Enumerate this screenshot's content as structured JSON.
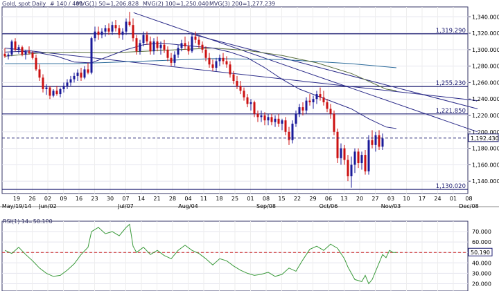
{
  "header": {
    "symbol": "Gold, spot",
    "period": "Daily",
    "bars": "# 140 / 401",
    "ma1": "MVG(1) 50=1,206.828",
    "ma2": "MVG(2) 100=1,250.040",
    "ma3": "MVG(3) 200=1,277.239"
  },
  "colors": {
    "up": "#1a1a99",
    "down": "#cc1111",
    "ma50": "#2a2a88",
    "ma100": "#556b3a",
    "ma200": "#2a6a9a",
    "trend": "#2a2a88",
    "level": "#1c1c70",
    "last": "#1c1c70",
    "rsi": "#3a9a3a",
    "rsi_mid": "#cc2222"
  },
  "chart_data": [
    {
      "type": "candlestick",
      "title": "Gold, spot, Daily",
      "y_ticks": [
        1140,
        1160,
        1180,
        1200,
        1220,
        1240,
        1260,
        1280,
        1300,
        1320,
        1340
      ],
      "y_tick_labels": [
        "1,140.000",
        "1,160.000",
        "1,180.000",
        "1,200.000",
        "1,220.000",
        "1,240.000",
        "1,260.000",
        "1,280.000",
        "1,300.000",
        "1,320.000",
        "1,340.000"
      ],
      "ylim": [
        1125,
        1352
      ],
      "x_day_labels": [
        "19",
        "26",
        "02",
        "09",
        "16",
        "23",
        "30",
        "07",
        "14",
        "21",
        "28",
        "04",
        "11",
        "18",
        "25",
        "01",
        "08",
        "15",
        "22",
        "29",
        "06",
        "13",
        "20",
        "27",
        "03",
        "10",
        "17",
        "24",
        "01",
        "08"
      ],
      "x_month_labels": [
        "May/19/14",
        "Jun/02",
        "Jul/07",
        "Aug/04",
        "Sep/08",
        "Oct/06",
        "Nov/03",
        "Dec/08"
      ],
      "x_month_label_indices": [
        0,
        2,
        7,
        11,
        16,
        20,
        24,
        29
      ],
      "dates_start": "2014-05-19",
      "horizontal_levels": [
        {
          "value": 1319.29,
          "label": "1,319.290"
        },
        {
          "value": 1255.23,
          "label": "1,255.230"
        },
        {
          "value": 1221.85,
          "label": "1,221.850"
        },
        {
          "value": 1130.02,
          "label": "1,130.020"
        }
      ],
      "last_price": {
        "value": 1192.43,
        "label": "1,192.430"
      },
      "trendlines": [
        {
          "start": [
            "2014-07-10",
            1345
          ],
          "end": [
            "2014-11-26",
            1200
          ]
        },
        {
          "start": [
            "2014-08-01",
            1320
          ],
          "end": [
            "2014-11-26",
            1228
          ]
        },
        {
          "start": [
            "2014-05-19",
            1302
          ],
          "end": [
            "2014-11-26",
            1238
          ]
        }
      ],
      "candles": [
        [
          1295,
          1302,
          1290,
          1292
        ],
        [
          1292,
          1296,
          1288,
          1294
        ],
        [
          1294,
          1312,
          1292,
          1310
        ],
        [
          1310,
          1314,
          1298,
          1300
        ],
        [
          1300,
          1306,
          1295,
          1303
        ],
        [
          1303,
          1305,
          1292,
          1294
        ],
        [
          1294,
          1300,
          1288,
          1298
        ],
        [
          1298,
          1304,
          1294,
          1296
        ],
        [
          1296,
          1298,
          1288,
          1290
        ],
        [
          1290,
          1294,
          1274,
          1276
        ],
        [
          1276,
          1282,
          1262,
          1266
        ],
        [
          1266,
          1270,
          1248,
          1252
        ],
        [
          1252,
          1258,
          1245,
          1254
        ],
        [
          1254,
          1256,
          1240,
          1244
        ],
        [
          1244,
          1252,
          1242,
          1250
        ],
        [
          1250,
          1256,
          1244,
          1246
        ],
        [
          1246,
          1254,
          1242,
          1252
        ],
        [
          1252,
          1260,
          1248,
          1256
        ],
        [
          1256,
          1264,
          1252,
          1260
        ],
        [
          1260,
          1268,
          1256,
          1264
        ],
        [
          1264,
          1272,
          1260,
          1268
        ],
        [
          1268,
          1276,
          1262,
          1272
        ],
        [
          1272,
          1278,
          1262,
          1266
        ],
        [
          1266,
          1280,
          1264,
          1276
        ],
        [
          1276,
          1284,
          1270,
          1272
        ],
        [
          1272,
          1316,
          1270,
          1314
        ],
        [
          1314,
          1328,
          1310,
          1322
        ],
        [
          1322,
          1328,
          1312,
          1318
        ],
        [
          1318,
          1326,
          1314,
          1322
        ],
        [
          1322,
          1330,
          1316,
          1326
        ],
        [
          1326,
          1332,
          1318,
          1322
        ],
        [
          1322,
          1334,
          1318,
          1330
        ],
        [
          1330,
          1336,
          1322,
          1326
        ],
        [
          1326,
          1330,
          1314,
          1318
        ],
        [
          1318,
          1326,
          1312,
          1322
        ],
        [
          1322,
          1338,
          1318,
          1334
        ],
        [
          1334,
          1346,
          1328,
          1330
        ],
        [
          1330,
          1338,
          1310,
          1314
        ],
        [
          1314,
          1318,
          1294,
          1298
        ],
        [
          1298,
          1312,
          1294,
          1308
        ],
        [
          1308,
          1322,
          1304,
          1318
        ],
        [
          1318,
          1322,
          1306,
          1310
        ],
        [
          1310,
          1316,
          1294,
          1298
        ],
        [
          1298,
          1314,
          1294,
          1310
        ],
        [
          1310,
          1316,
          1298,
          1302
        ],
        [
          1302,
          1310,
          1294,
          1306
        ],
        [
          1306,
          1312,
          1296,
          1300
        ],
        [
          1300,
          1304,
          1286,
          1290
        ],
        [
          1290,
          1296,
          1280,
          1284
        ],
        [
          1284,
          1298,
          1280,
          1294
        ],
        [
          1294,
          1306,
          1290,
          1302
        ],
        [
          1302,
          1312,
          1298,
          1308
        ],
        [
          1308,
          1316,
          1300,
          1304
        ],
        [
          1304,
          1310,
          1294,
          1298
        ],
        [
          1298,
          1320,
          1296,
          1316
        ],
        [
          1316,
          1322,
          1308,
          1312
        ],
        [
          1312,
          1316,
          1302,
          1306
        ],
        [
          1306,
          1310,
          1296,
          1300
        ],
        [
          1300,
          1304,
          1286,
          1290
        ],
        [
          1290,
          1296,
          1278,
          1282
        ],
        [
          1282,
          1288,
          1274,
          1278
        ],
        [
          1278,
          1290,
          1274,
          1286
        ],
        [
          1286,
          1294,
          1280,
          1290
        ],
        [
          1290,
          1296,
          1282,
          1286
        ],
        [
          1286,
          1292,
          1278,
          1282
        ],
        [
          1282,
          1286,
          1266,
          1270
        ],
        [
          1270,
          1274,
          1258,
          1262
        ],
        [
          1262,
          1268,
          1252,
          1256
        ],
        [
          1256,
          1262,
          1246,
          1250
        ],
        [
          1250,
          1254,
          1238,
          1242
        ],
        [
          1242,
          1246,
          1230,
          1234
        ],
        [
          1234,
          1240,
          1226,
          1236
        ],
        [
          1236,
          1238,
          1218,
          1222
        ],
        [
          1222,
          1226,
          1212,
          1218
        ],
        [
          1218,
          1226,
          1212,
          1220
        ],
        [
          1220,
          1224,
          1208,
          1214
        ],
        [
          1214,
          1222,
          1208,
          1218
        ],
        [
          1218,
          1222,
          1208,
          1212
        ],
        [
          1212,
          1220,
          1206,
          1216
        ],
        [
          1216,
          1222,
          1206,
          1210
        ],
        [
          1210,
          1216,
          1202,
          1214
        ],
        [
          1214,
          1218,
          1196,
          1200
        ],
        [
          1200,
          1206,
          1184,
          1190
        ],
        [
          1190,
          1214,
          1186,
          1210
        ],
        [
          1210,
          1226,
          1206,
          1222
        ],
        [
          1222,
          1234,
          1218,
          1230
        ],
        [
          1230,
          1236,
          1220,
          1226
        ],
        [
          1226,
          1242,
          1222,
          1238
        ],
        [
          1238,
          1246,
          1232,
          1236
        ],
        [
          1236,
          1244,
          1228,
          1240
        ],
        [
          1240,
          1250,
          1234,
          1246
        ],
        [
          1246,
          1254,
          1238,
          1242
        ],
        [
          1242,
          1250,
          1232,
          1236
        ],
        [
          1236,
          1240,
          1224,
          1228
        ],
        [
          1228,
          1234,
          1216,
          1222
        ],
        [
          1222,
          1226,
          1196,
          1200
        ],
        [
          1200,
          1204,
          1162,
          1168
        ],
        [
          1168,
          1186,
          1160,
          1180
        ],
        [
          1180,
          1184,
          1160,
          1166
        ],
        [
          1166,
          1172,
          1140,
          1146
        ],
        [
          1146,
          1170,
          1132,
          1160
        ],
        [
          1160,
          1180,
          1150,
          1176
        ],
        [
          1176,
          1180,
          1156,
          1162
        ],
        [
          1162,
          1176,
          1154,
          1172
        ],
        [
          1172,
          1178,
          1148,
          1152
        ],
        [
          1152,
          1196,
          1148,
          1190
        ],
        [
          1190,
          1202,
          1180,
          1184
        ],
        [
          1184,
          1200,
          1176,
          1196
        ],
        [
          1196,
          1202,
          1178,
          1182
        ],
        [
          1182,
          1198,
          1178,
          1192
        ]
      ],
      "ma50": [
        [
          0,
          1297
        ],
        [
          5,
          1298
        ],
        [
          10,
          1296
        ],
        [
          15,
          1292
        ],
        [
          20,
          1285
        ],
        [
          25,
          1284
        ],
        [
          30,
          1292
        ],
        [
          35,
          1300
        ],
        [
          40,
          1306
        ],
        [
          45,
          1308
        ],
        [
          50,
          1306
        ],
        [
          55,
          1304
        ],
        [
          60,
          1302
        ],
        [
          65,
          1297
        ],
        [
          70,
          1290
        ],
        [
          75,
          1278
        ],
        [
          80,
          1264
        ],
        [
          85,
          1252
        ],
        [
          90,
          1244
        ],
        [
          95,
          1236
        ],
        [
          100,
          1228
        ],
        [
          105,
          1216
        ],
        [
          110,
          1206
        ],
        [
          113,
          1204
        ]
      ],
      "ma100": [
        [
          0,
          1292
        ],
        [
          10,
          1296
        ],
        [
          20,
          1297
        ],
        [
          30,
          1296
        ],
        [
          40,
          1298
        ],
        [
          50,
          1300
        ],
        [
          60,
          1302
        ],
        [
          70,
          1299
        ],
        [
          80,
          1293
        ],
        [
          90,
          1284
        ],
        [
          100,
          1271
        ],
        [
          110,
          1252
        ],
        [
          113,
          1250
        ]
      ],
      "ma200": [
        [
          0,
          1283
        ],
        [
          20,
          1283
        ],
        [
          40,
          1286
        ],
        [
          60,
          1289
        ],
        [
          80,
          1288
        ],
        [
          100,
          1283
        ],
        [
          113,
          1278
        ]
      ]
    },
    {
      "type": "line",
      "title": "RSI(1) 14=50.190",
      "y_ticks": [
        20,
        30,
        40,
        50,
        60,
        70
      ],
      "y_tick_labels": [
        "20.000",
        "30.000",
        "40.000",
        "50.000",
        "60.000",
        "70.000"
      ],
      "ylim": [
        13,
        80
      ],
      "midline": 50,
      "last_label": "50.190",
      "values": [
        [
          0,
          52
        ],
        [
          2,
          49
        ],
        [
          4,
          55
        ],
        [
          6,
          48
        ],
        [
          8,
          42
        ],
        [
          10,
          35
        ],
        [
          12,
          30
        ],
        [
          14,
          27
        ],
        [
          16,
          28
        ],
        [
          18,
          33
        ],
        [
          20,
          39
        ],
        [
          22,
          48
        ],
        [
          24,
          55
        ],
        [
          25,
          70
        ],
        [
          27,
          74
        ],
        [
          29,
          68
        ],
        [
          31,
          70
        ],
        [
          33,
          66
        ],
        [
          35,
          74
        ],
        [
          36,
          77
        ],
        [
          37,
          56
        ],
        [
          38,
          50
        ],
        [
          40,
          55
        ],
        [
          42,
          48
        ],
        [
          44,
          52
        ],
        [
          46,
          47
        ],
        [
          48,
          44
        ],
        [
          50,
          52
        ],
        [
          52,
          57
        ],
        [
          54,
          52
        ],
        [
          56,
          49
        ],
        [
          58,
          44
        ],
        [
          60,
          38
        ],
        [
          62,
          44
        ],
        [
          64,
          42
        ],
        [
          66,
          37
        ],
        [
          68,
          33
        ],
        [
          70,
          30
        ],
        [
          72,
          28
        ],
        [
          74,
          29
        ],
        [
          76,
          31
        ],
        [
          78,
          27
        ],
        [
          80,
          29
        ],
        [
          82,
          35
        ],
        [
          84,
          32
        ],
        [
          86,
          43
        ],
        [
          88,
          53
        ],
        [
          90,
          56
        ],
        [
          92,
          52
        ],
        [
          94,
          58
        ],
        [
          96,
          54
        ],
        [
          98,
          44
        ],
        [
          99,
          36
        ],
        [
          100,
          30
        ],
        [
          101,
          24
        ],
        [
          103,
          22
        ],
        [
          104,
          28
        ],
        [
          105,
          20
        ],
        [
          106,
          24
        ],
        [
          107,
          32
        ],
        [
          108,
          40
        ],
        [
          109,
          48
        ],
        [
          110,
          45
        ],
        [
          111,
          52
        ],
        [
          112,
          50
        ],
        [
          113,
          50
        ]
      ]
    }
  ]
}
